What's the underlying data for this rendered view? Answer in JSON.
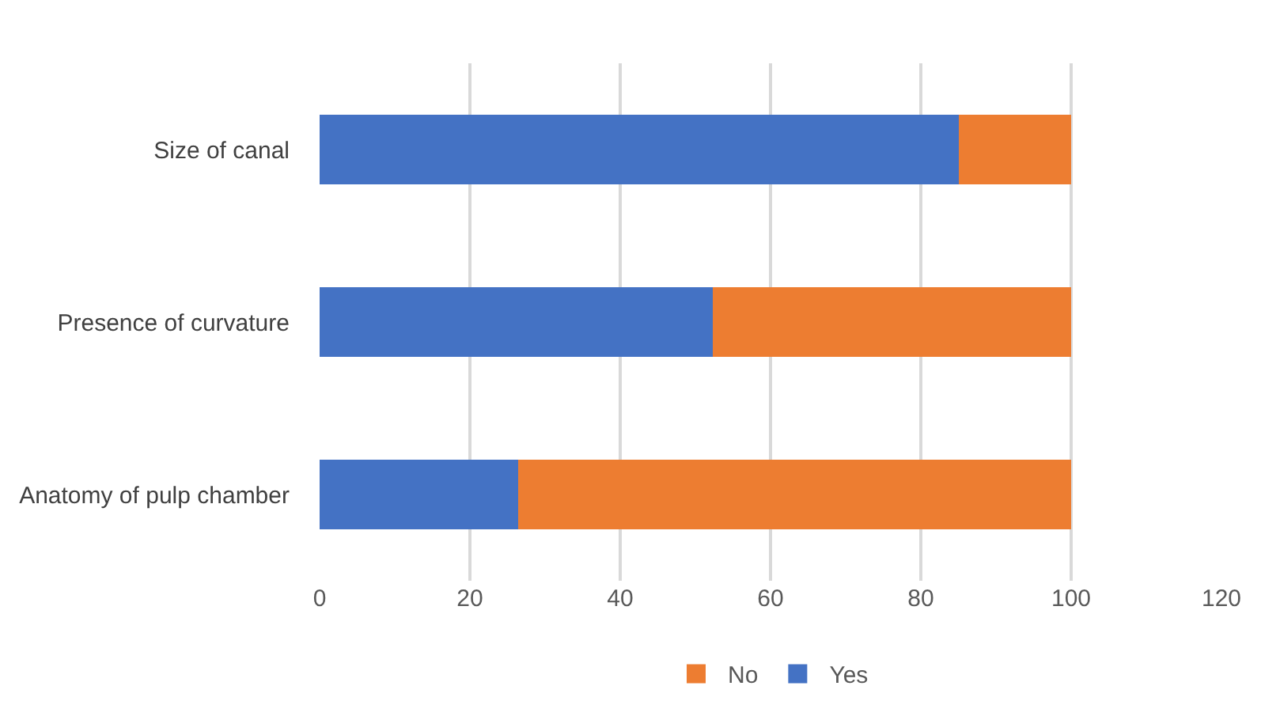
{
  "chart_data": {
    "type": "bar",
    "orientation": "horizontal",
    "stacked": true,
    "categories": [
      "Size of canal",
      "Presence of curvature",
      "Anatomy of pulp chamber"
    ],
    "series": [
      {
        "name": "Yes",
        "color": "#4472c4",
        "values": [
          85,
          52.3,
          26.4
        ]
      },
      {
        "name": "No",
        "color": "#ed7d31",
        "values": [
          15,
          47.7,
          73.6
        ]
      }
    ],
    "xlim": [
      0,
      120
    ],
    "xticks": [
      0,
      20,
      40,
      60,
      80,
      100,
      120
    ],
    "grid": "x",
    "legend": "bottom"
  }
}
